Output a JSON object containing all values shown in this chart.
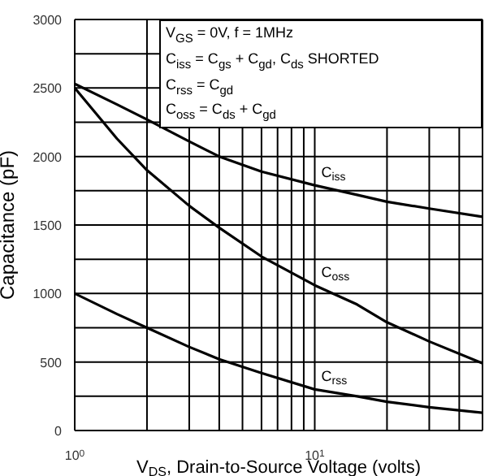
{
  "chart_data": {
    "type": "line",
    "xlabel": "V$_{DS}$, Drain-to-Source Voltage (volts)",
    "ylabel": "Capacitance (pF)",
    "annotations": [
      "V$_{GS}$ = 0V,  f = 1MHz",
      "C$_{iss}$ = C$_{gs}$ + C$_{gd}$,  C$_{ds}$ SHORTED",
      "C$_{rss}$ = C$_{gd}$",
      "C$_{oss}$ = C$_{ds}$ + C$_{gd}$"
    ],
    "log": "x",
    "grid": true,
    "marker": "none",
    "line_style": "solid",
    "xlim": [
      1,
      50
    ],
    "xticks": [
      {
        "value": 1,
        "label": "10$^{0}$"
      },
      {
        "value": 2,
        "label": null
      },
      {
        "value": 3,
        "label": null
      },
      {
        "value": 4,
        "label": null
      },
      {
        "value": 5,
        "label": null
      },
      {
        "value": 6,
        "label": null
      },
      {
        "value": 7,
        "label": null
      },
      {
        "value": 8,
        "label": null
      },
      {
        "value": 9,
        "label": null
      },
      {
        "value": 10,
        "label": "10$^{1}$"
      },
      {
        "value": 20,
        "label": null
      },
      {
        "value": 30,
        "label": null
      },
      {
        "value": 40,
        "label": null
      },
      {
        "value": 50,
        "label": null
      }
    ],
    "ylim": [
      0,
      3000
    ],
    "yticks": [
      0,
      {
        "value": 250,
        "label": null
      },
      500,
      {
        "value": 750,
        "label": null
      },
      1000,
      {
        "value": 1250,
        "label": null
      },
      1500,
      {
        "value": 1750,
        "label": null
      },
      2000,
      {
        "value": 2250,
        "label": null
      },
      2500,
      {
        "value": 2750,
        "label": null
      },
      3000
    ],
    "x": [
      1,
      1.5,
      2,
      3,
      4,
      6,
      10,
      15,
      20,
      30,
      50
    ],
    "series": [
      {
        "name": "C$_{iss}$",
        "color": "#000000",
        "values": [
          2530,
          2380,
          2270,
          2110,
          2000,
          1890,
          1790,
          1720,
          1670,
          1620,
          1560
        ]
      },
      {
        "name": "C$_{oss}$",
        "color": "#000000",
        "values": [
          2500,
          2130,
          1900,
          1640,
          1480,
          1270,
          1060,
          920,
          790,
          650,
          490
        ]
      },
      {
        "name": "C$_{rss}$",
        "color": "#000000",
        "values": [
          1000,
          850,
          750,
          610,
          520,
          420,
          300,
          250,
          210,
          170,
          130
        ]
      }
    ]
  }
}
